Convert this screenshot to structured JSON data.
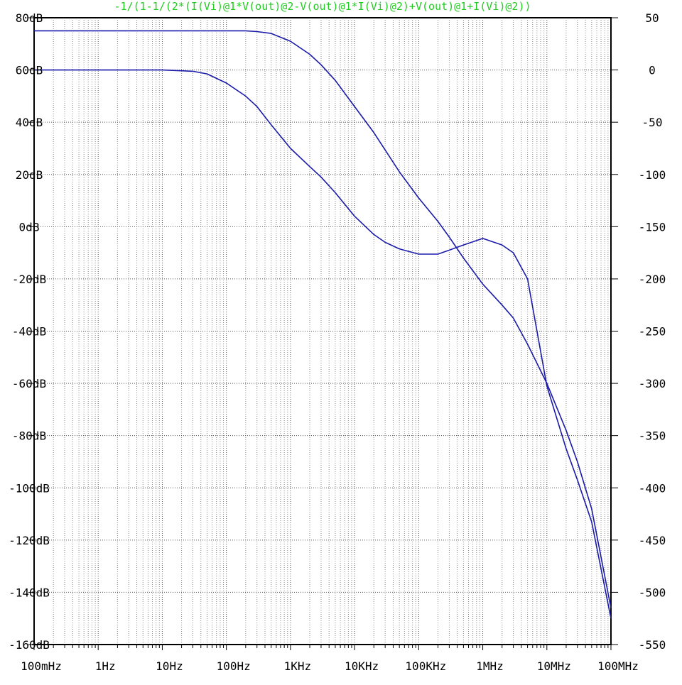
{
  "chart_data": {
    "type": "line",
    "title": "-1/(1-1/(2*(I(Vi)@1*V(out)@2-V(out)@1*I(Vi)@2)+V(out)@1+I(Vi)@2))",
    "x_scale": "log",
    "xlim": [
      0.1,
      100000000
    ],
    "x_ticks": [
      {
        "value": 0.1,
        "label": "100mHz"
      },
      {
        "value": 1,
        "label": "1Hz"
      },
      {
        "value": 10,
        "label": "10Hz"
      },
      {
        "value": 100,
        "label": "100Hz"
      },
      {
        "value": 1000,
        "label": "1KHz"
      },
      {
        "value": 10000,
        "label": "10KHz"
      },
      {
        "value": 100000,
        "label": "100KHz"
      },
      {
        "value": 1000000,
        "label": "1MHz"
      },
      {
        "value": 10000000,
        "label": "10MHz"
      },
      {
        "value": 100000000,
        "label": "100MHz"
      }
    ],
    "ylim_left": [
      -160,
      80
    ],
    "y_ticks_left": [
      {
        "value": 80,
        "label": "80dB"
      },
      {
        "value": 60,
        "label": "60dB"
      },
      {
        "value": 40,
        "label": "40dB"
      },
      {
        "value": 20,
        "label": "20dB"
      },
      {
        "value": 0,
        "label": "0dB"
      },
      {
        "value": -20,
        "label": "-20dB"
      },
      {
        "value": -40,
        "label": "-40dB"
      },
      {
        "value": -60,
        "label": "-60dB"
      },
      {
        "value": -80,
        "label": "-80dB"
      },
      {
        "value": -100,
        "label": "-100dB"
      },
      {
        "value": -120,
        "label": "-120dB"
      },
      {
        "value": -140,
        "label": "-140dB"
      },
      {
        "value": -160,
        "label": "-160dB"
      }
    ],
    "ylim_right": [
      -550,
      50
    ],
    "y_ticks_right": [
      {
        "value": 50,
        "label": "50"
      },
      {
        "value": 0,
        "label": "0"
      },
      {
        "value": -50,
        "label": "-50"
      },
      {
        "value": -100,
        "label": "-100"
      },
      {
        "value": -150,
        "label": "-150"
      },
      {
        "value": -200,
        "label": "-200"
      },
      {
        "value": -250,
        "label": "-250"
      },
      {
        "value": -300,
        "label": "-300"
      },
      {
        "value": -350,
        "label": "-350"
      },
      {
        "value": -400,
        "label": "-400"
      },
      {
        "value": -450,
        "label": "-450"
      },
      {
        "value": -500,
        "label": "-500"
      },
      {
        "value": -550,
        "label": "-550"
      }
    ],
    "grid": true,
    "series": [
      {
        "axis": "left",
        "line_style": "solid",
        "x": [
          0.1,
          1,
          10,
          100,
          200,
          300,
          500,
          1000,
          2000,
          3000,
          5000,
          10000,
          20000,
          50000,
          100000,
          200000,
          300000,
          500000,
          1000000,
          2000000,
          3000000,
          5000000,
          10000000,
          20000000,
          30000000,
          50000000,
          100000000
        ],
        "y": [
          75,
          75,
          75,
          75,
          75,
          74.7,
          74,
          71,
          66,
          62,
          56,
          46,
          36,
          21,
          11,
          2,
          -4,
          -12,
          -22,
          -30,
          -35,
          -45,
          -60,
          -78,
          -90,
          -108,
          -146
        ]
      },
      {
        "axis": "left",
        "line_style": "solid",
        "x": [
          0.1,
          1,
          10,
          20,
          30,
          50,
          100,
          200,
          300,
          500,
          1000,
          2000,
          3000,
          5000,
          10000,
          20000,
          30000,
          50000,
          100000,
          200000,
          300000,
          500000,
          1000000,
          2000000,
          3000000,
          5000000,
          10000000,
          20000000,
          30000000,
          50000000,
          100000000
        ],
        "y": [
          60,
          60,
          60,
          59.7,
          59.5,
          58.5,
          55,
          50,
          46,
          39,
          30,
          23,
          19,
          13,
          4,
          -3,
          -6,
          -8.5,
          -10.5,
          -10.5,
          -9,
          -7,
          -4.5,
          -7,
          -10,
          -20,
          -61,
          -85,
          -97,
          -113,
          -150
        ]
      }
    ]
  }
}
